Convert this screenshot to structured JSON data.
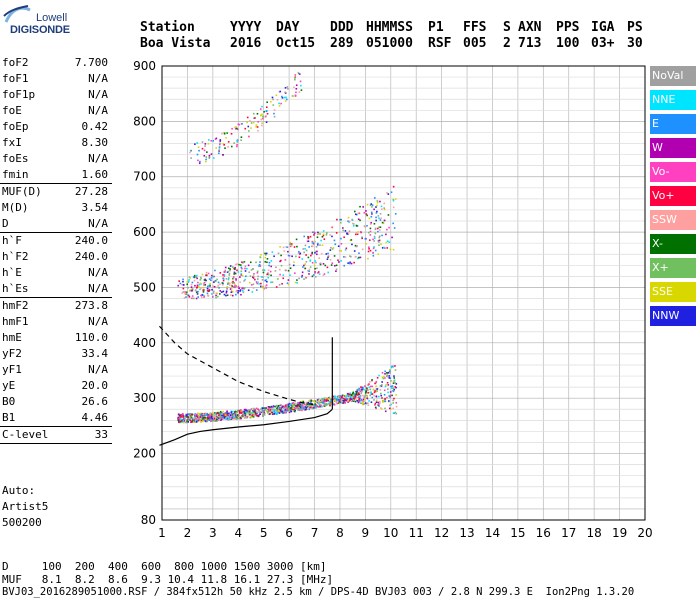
{
  "logo": {
    "line1": "Lowell",
    "line2": "DIGISONDE"
  },
  "header": {
    "labels": [
      "Station",
      "YYYY",
      "DAY",
      "DDD",
      "HHMMSS",
      "P1",
      "FFS",
      "S",
      "AXN",
      "PPS",
      "IGA",
      "PS"
    ],
    "values": [
      "Boa Vista",
      "2016",
      "Oct15",
      "289",
      "051000",
      "RSF",
      "005",
      "2",
      "713",
      "100",
      "03+",
      "30"
    ]
  },
  "params": [
    {
      "k": "foF2",
      "v": "7.700"
    },
    {
      "k": "foF1",
      "v": "N/A"
    },
    {
      "k": "foF1p",
      "v": "N/A"
    },
    {
      "k": "foE",
      "v": "N/A"
    },
    {
      "k": "foEp",
      "v": "0.42"
    },
    {
      "k": "fxI",
      "v": "8.30"
    },
    {
      "k": "foEs",
      "v": "N/A"
    },
    {
      "k": "fmin",
      "v": "1.60"
    },
    {
      "sep": true
    },
    {
      "k": "MUF(D)",
      "v": "27.28"
    },
    {
      "k": "M(D)",
      "v": "3.54"
    },
    {
      "k": "D",
      "v": "N/A"
    },
    {
      "sep": true
    },
    {
      "k": "h`F",
      "v": "240.0"
    },
    {
      "k": "h`F2",
      "v": "240.0"
    },
    {
      "k": "h`E",
      "v": "N/A"
    },
    {
      "k": "h`Es",
      "v": "N/A"
    },
    {
      "sep": true
    },
    {
      "k": "hmF2",
      "v": "273.8"
    },
    {
      "k": "hmF1",
      "v": "N/A"
    },
    {
      "k": "hmE",
      "v": "110.0"
    },
    {
      "k": "yF2",
      "v": "33.4"
    },
    {
      "k": "yF1",
      "v": "N/A"
    },
    {
      "k": "yE",
      "v": "20.0"
    },
    {
      "k": "B0",
      "v": "26.6"
    },
    {
      "k": "B1",
      "v": "4.46"
    },
    {
      "sep": true
    },
    {
      "k": "C-level",
      "v": "33"
    },
    {
      "sep": true
    }
  ],
  "auto": {
    "line1": "Auto:",
    "line2": "Artist5",
    "line3": "500200"
  },
  "footer": {
    "d_row": "D     100  200  400  600  800 1000 1500 3000 [km]",
    "muf_row": "MUF   8.1  8.2  8.6  9.3 10.4 11.8 16.1 27.3 [MHz]",
    "file_row": "BVJ03_2016289051000.RSF / 384fx512h 50 kHz 2.5 km / DPS-4D BVJ03 003 / 2.8 N 299.3 E  Ion2Png 1.3.20"
  },
  "legend": [
    {
      "label": "NoVal",
      "color": "#a0a0a0"
    },
    {
      "label": "NNE",
      "color": "#00e5ff"
    },
    {
      "label": "E",
      "color": "#1e90ff"
    },
    {
      "label": "W",
      "color": "#b000b0"
    },
    {
      "label": "Vo-",
      "color": "#ff40c0"
    },
    {
      "label": "Vo+",
      "color": "#ff0040"
    },
    {
      "label": "SSW",
      "color": "#ffa0a0"
    },
    {
      "label": "X-",
      "color": "#007000"
    },
    {
      "label": "X+",
      "color": "#70c060"
    },
    {
      "label": "SSE",
      "color": "#d8d800"
    },
    {
      "label": "NNW",
      "color": "#2020e0"
    }
  ],
  "chart_data": {
    "type": "scatter",
    "xlim": [
      1,
      20
    ],
    "ylim": [
      80,
      900
    ],
    "x_ticks": [
      1,
      2,
      3,
      4,
      5,
      6,
      7,
      8,
      9,
      10,
      11,
      12,
      13,
      14,
      15,
      16,
      17,
      18,
      19,
      20
    ],
    "y_ticks": [
      80,
      200,
      300,
      400,
      500,
      600,
      700,
      800,
      900
    ],
    "grid": true,
    "series": [
      {
        "style": "dashed",
        "color": "#000000",
        "x": [
          0.9,
          1.5,
          2.0,
          3.0,
          4.0,
          5.0,
          6.0,
          6.5,
          7.0
        ],
        "y": [
          430,
          400,
          380,
          355,
          330,
          312,
          298,
          292,
          288
        ]
      },
      {
        "style": "solid",
        "color": "#000000",
        "x": [
          0.9,
          1.5,
          2.0,
          2.5,
          3.0,
          4.0,
          5.0,
          6.0,
          7.0,
          7.5,
          7.7
        ],
        "y": [
          215,
          225,
          235,
          240,
          243,
          248,
          252,
          258,
          265,
          272,
          280
        ]
      },
      {
        "style": "solid",
        "color": "#000000",
        "x": [
          7.7,
          7.7
        ],
        "y": [
          280,
          410
        ]
      }
    ],
    "echo_traces": [
      {
        "name": "O-trace F2",
        "x_range": [
          1.6,
          10.2
        ],
        "y_start": 265,
        "y_end": 320
      },
      {
        "name": "2nd hop",
        "x_range": [
          1.6,
          10.2
        ],
        "y_start": 500,
        "y_end": 630
      },
      {
        "name": "3rd hop",
        "x_range": [
          2.0,
          6.5
        ],
        "y_start": 740,
        "y_end": 880
      }
    ]
  }
}
